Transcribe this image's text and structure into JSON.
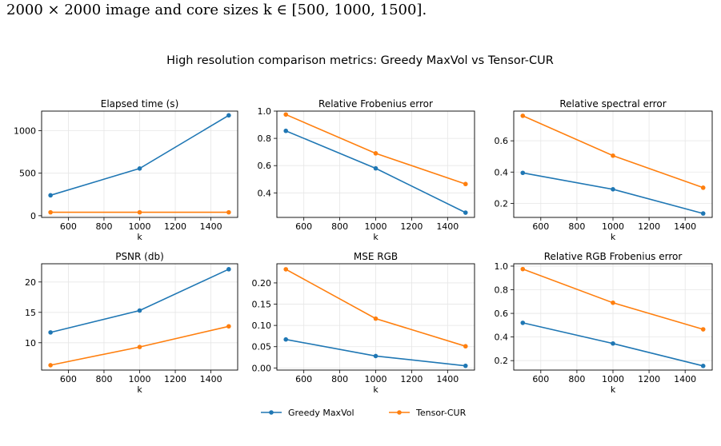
{
  "caption": "2000 × 2000 image and core sizes k ∈ [500, 1000, 1500].",
  "suptitle": "High resolution comparison metrics: Greedy MaxVol vs Tensor-CUR",
  "colors": {
    "greedy": "#1f77b4",
    "tensor": "#ff7f0e",
    "grid": "#e6e6e6",
    "axes": "#000000"
  },
  "legend": [
    {
      "name": "Greedy MaxVol",
      "color": "#1f77b4"
    },
    {
      "name": "Tensor-CUR",
      "color": "#ff7f0e"
    }
  ],
  "chart_data": [
    {
      "type": "line",
      "title": "Elapsed time (s)",
      "xlabel": "k",
      "ylabel": "",
      "x": [
        500,
        1000,
        1500
      ],
      "xlim": [
        450,
        1550
      ],
      "ylim": [
        -20,
        1230
      ],
      "xticks": [
        600,
        800,
        1000,
        1200,
        1400
      ],
      "yticks": [
        0,
        500,
        1000
      ],
      "grid": true,
      "series": [
        {
          "name": "Greedy MaxVol",
          "values": [
            240,
            555,
            1180
          ]
        },
        {
          "name": "Tensor-CUR",
          "values": [
            40,
            40,
            40
          ]
        }
      ]
    },
    {
      "type": "line",
      "title": "Relative Frobenius error",
      "xlabel": "k",
      "ylabel": "",
      "x": [
        500,
        1000,
        1500
      ],
      "xlim": [
        450,
        1550
      ],
      "ylim": [
        0.22,
        1.0
      ],
      "xticks": [
        600,
        800,
        1000,
        1200,
        1400
      ],
      "yticks": [
        0.4,
        0.6,
        0.8,
        1.0
      ],
      "grid": true,
      "series": [
        {
          "name": "Greedy MaxVol",
          "values": [
            0.855,
            0.58,
            0.255
          ]
        },
        {
          "name": "Tensor-CUR",
          "values": [
            0.975,
            0.69,
            0.465
          ]
        }
      ]
    },
    {
      "type": "line",
      "title": "Relative spectral error",
      "xlabel": "k",
      "ylabel": "",
      "x": [
        500,
        1000,
        1500
      ],
      "xlim": [
        450,
        1550
      ],
      "ylim": [
        0.11,
        0.79
      ],
      "xticks": [
        600,
        800,
        1000,
        1200,
        1400
      ],
      "yticks": [
        0.2,
        0.4,
        0.6
      ],
      "grid": true,
      "series": [
        {
          "name": "Greedy MaxVol",
          "values": [
            0.395,
            0.29,
            0.135
          ]
        },
        {
          "name": "Tensor-CUR",
          "values": [
            0.76,
            0.505,
            0.3
          ]
        }
      ]
    },
    {
      "type": "line",
      "title": "PSNR (db)",
      "xlabel": "k",
      "ylabel": "",
      "x": [
        500,
        1000,
        1500
      ],
      "xlim": [
        450,
        1550
      ],
      "ylim": [
        5.5,
        23.0
      ],
      "xticks": [
        600,
        800,
        1000,
        1200,
        1400
      ],
      "yticks": [
        10,
        15,
        20
      ],
      "grid": true,
      "series": [
        {
          "name": "Greedy MaxVol",
          "values": [
            11.7,
            15.3,
            22.1
          ]
        },
        {
          "name": "Tensor-CUR",
          "values": [
            6.3,
            9.3,
            12.7
          ]
        }
      ]
    },
    {
      "type": "line",
      "title": "MSE RGB",
      "xlabel": "k",
      "ylabel": "",
      "x": [
        500,
        1000,
        1500
      ],
      "xlim": [
        450,
        1550
      ],
      "ylim": [
        -0.005,
        0.245
      ],
      "xticks": [
        600,
        800,
        1000,
        1200,
        1400
      ],
      "yticks": [
        0.0,
        0.05,
        0.1,
        0.15,
        0.2
      ],
      "grid": true,
      "series": [
        {
          "name": "Greedy MaxVol",
          "values": [
            0.067,
            0.028,
            0.005
          ]
        },
        {
          "name": "Tensor-CUR",
          "values": [
            0.232,
            0.116,
            0.051
          ]
        }
      ]
    },
    {
      "type": "line",
      "title": "Relative RGB Frobenius error",
      "xlabel": "k",
      "ylabel": "",
      "x": [
        500,
        1000,
        1500
      ],
      "xlim": [
        450,
        1550
      ],
      "ylim": [
        0.12,
        1.02
      ],
      "xticks": [
        600,
        800,
        1000,
        1200,
        1400
      ],
      "yticks": [
        0.2,
        0.4,
        0.6,
        0.8,
        1.0
      ],
      "grid": true,
      "series": [
        {
          "name": "Greedy MaxVol",
          "values": [
            0.52,
            0.345,
            0.155
          ]
        },
        {
          "name": "Tensor-CUR",
          "values": [
            0.975,
            0.69,
            0.465
          ]
        }
      ]
    }
  ]
}
